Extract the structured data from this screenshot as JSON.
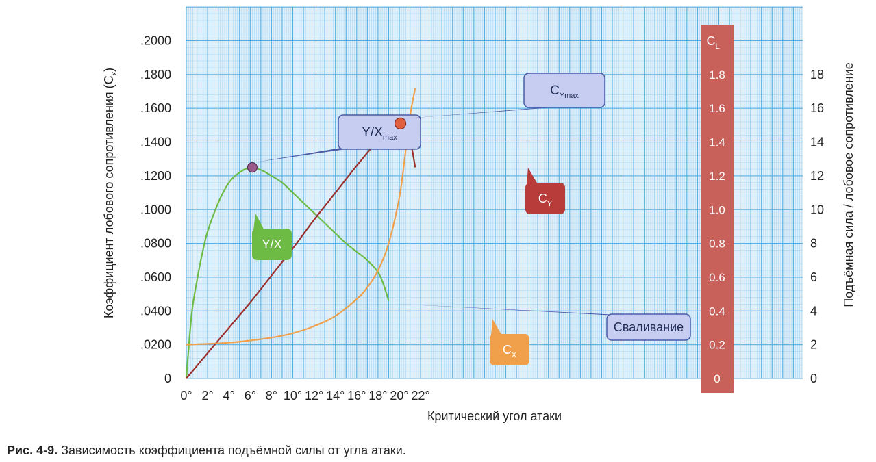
{
  "chart_data": {
    "type": "line",
    "xlabel": "Критический угол атаки",
    "ylabel_left": "Коэффициент лобового сопротивления (Cx)",
    "ylabel_left_text": "Коэффициент лобового сопротивления (C",
    "ylabel_left_sub": "x",
    "ylabel_right": "Подъёмная сила / лобовое сопротивление",
    "cl_axis_title": "C",
    "cl_axis_title_sub": "L",
    "x_ticks": [
      "0°",
      "2°",
      "4°",
      "6°",
      "8°",
      "10°",
      "12°",
      "14°",
      "16°",
      "18°",
      "20°",
      "22°"
    ],
    "x_tick_values": [
      0,
      2,
      4,
      6,
      8,
      10,
      12,
      14,
      16,
      18,
      20,
      22
    ],
    "xlim": [
      0,
      24
    ],
    "y_left_ticks": [
      "0",
      ".0200",
      ".0400",
      ".0600",
      ".0800",
      ".1000",
      ".1200",
      ".1400",
      ".1600",
      ".1800",
      ".2000"
    ],
    "y_left_tick_values": [
      0,
      0.02,
      0.04,
      0.06,
      0.08,
      0.1,
      0.12,
      0.14,
      0.16,
      0.18,
      0.2
    ],
    "y_left_lim": [
      0,
      0.22
    ],
    "cl_ticks": [
      "0",
      "0.2",
      "0.4",
      "0.6",
      "0.8",
      "1.0",
      "1.2",
      "1.4",
      "1.6",
      "1.8"
    ],
    "cl_tick_values": [
      0,
      0.2,
      0.4,
      0.6,
      0.8,
      1.0,
      1.2,
      1.4,
      1.6,
      1.8
    ],
    "cl_lim": [
      0,
      2.2
    ],
    "y_right_ticks": [
      "0",
      "2",
      "4",
      "6",
      "8",
      "10",
      "12",
      "14",
      "16",
      "18"
    ],
    "y_right_tick_values": [
      0,
      2,
      4,
      6,
      8,
      10,
      12,
      14,
      16,
      18
    ],
    "y_right_lim": [
      0,
      22
    ],
    "grid": true,
    "series": [
      {
        "name": "Y/X",
        "axis": "lift_drag_ratio",
        "color": "#6dbb45",
        "x": [
          0,
          0.5,
          1,
          1.5,
          2,
          3,
          4,
          5,
          6,
          7,
          8,
          9,
          10,
          11,
          12,
          13,
          14,
          15,
          16,
          17,
          18,
          18.5,
          19
        ],
        "y": [
          0,
          3.8,
          5.8,
          7.4,
          8.7,
          10.4,
          11.6,
          12.2,
          12.5,
          12.35,
          12.0,
          11.6,
          11.0,
          10.4,
          9.8,
          9.2,
          8.6,
          8.0,
          7.5,
          7.0,
          6.3,
          5.6,
          4.6
        ]
      },
      {
        "name": "C",
        "name_sub": "Y",
        "axis": "CL",
        "color": "#9b2d2a",
        "x": [
          0,
          2,
          4,
          6,
          8,
          10,
          12,
          14,
          16,
          18,
          19,
          20,
          20.5,
          21,
          21.5
        ],
        "y": [
          0,
          0.15,
          0.3,
          0.45,
          0.61,
          0.77,
          0.94,
          1.1,
          1.26,
          1.41,
          1.47,
          1.51,
          1.5,
          1.42,
          1.25
        ]
      },
      {
        "name": "C",
        "name_sub": "X",
        "axis": "Cx",
        "color": "#f0a04b",
        "x": [
          0,
          2,
          4,
          6,
          8,
          10,
          12,
          14,
          16,
          17,
          18,
          19,
          20,
          20.5,
          21,
          21.5
        ],
        "y": [
          0.02,
          0.0205,
          0.0212,
          0.0225,
          0.0242,
          0.0268,
          0.031,
          0.037,
          0.047,
          0.054,
          0.064,
          0.08,
          0.107,
          0.13,
          0.155,
          0.172
        ]
      }
    ],
    "markers": [
      {
        "name": "Y/Xmax",
        "label": "Y/X",
        "label_sub": "max",
        "x": 6.2,
        "axis": "lift_drag_ratio",
        "y": 12.5
      },
      {
        "name": "CYmax",
        "label": "C",
        "label_sub": "Ymax",
        "x": 20.1,
        "axis": "CL",
        "y": 1.51
      }
    ],
    "annotations": [
      {
        "text": "Сваливание",
        "target_x": 19.1,
        "target_axis": "lift_drag_ratio",
        "target_y": 4.6
      }
    ]
  },
  "caption": {
    "label": "Рис. 4-9.",
    "text": "Зависимость коэффициента подъёмной силы от угла атаки."
  },
  "colors": {
    "grid_bg": "#dff0fb",
    "grid_minor": "#a9d6f2",
    "grid_major": "#56aee0",
    "cl_band": "#c9615b",
    "callout_blue": "#c6cdf0",
    "callout_green": "#6dbb45",
    "callout_red": "#b73c3a",
    "callout_orange": "#f0a04b"
  }
}
